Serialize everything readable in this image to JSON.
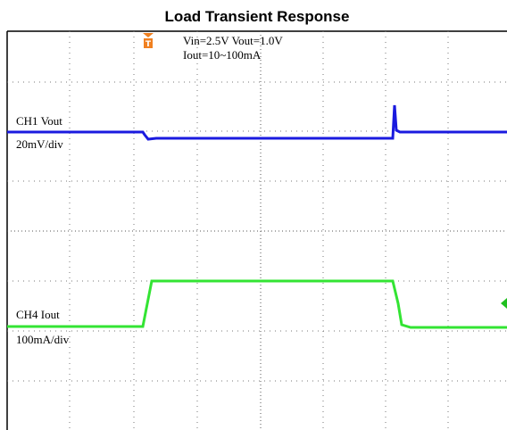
{
  "title": "Load Transient Response",
  "conditions": [
    "Vin=2.5V  Vout=1.0V",
    "Iout=10~100mA"
  ],
  "channels": [
    {
      "name": "CH1 Vout",
      "scale": "20mV/div"
    },
    {
      "name": "CH4 Iout",
      "scale": "100mA/div"
    }
  ]
}
